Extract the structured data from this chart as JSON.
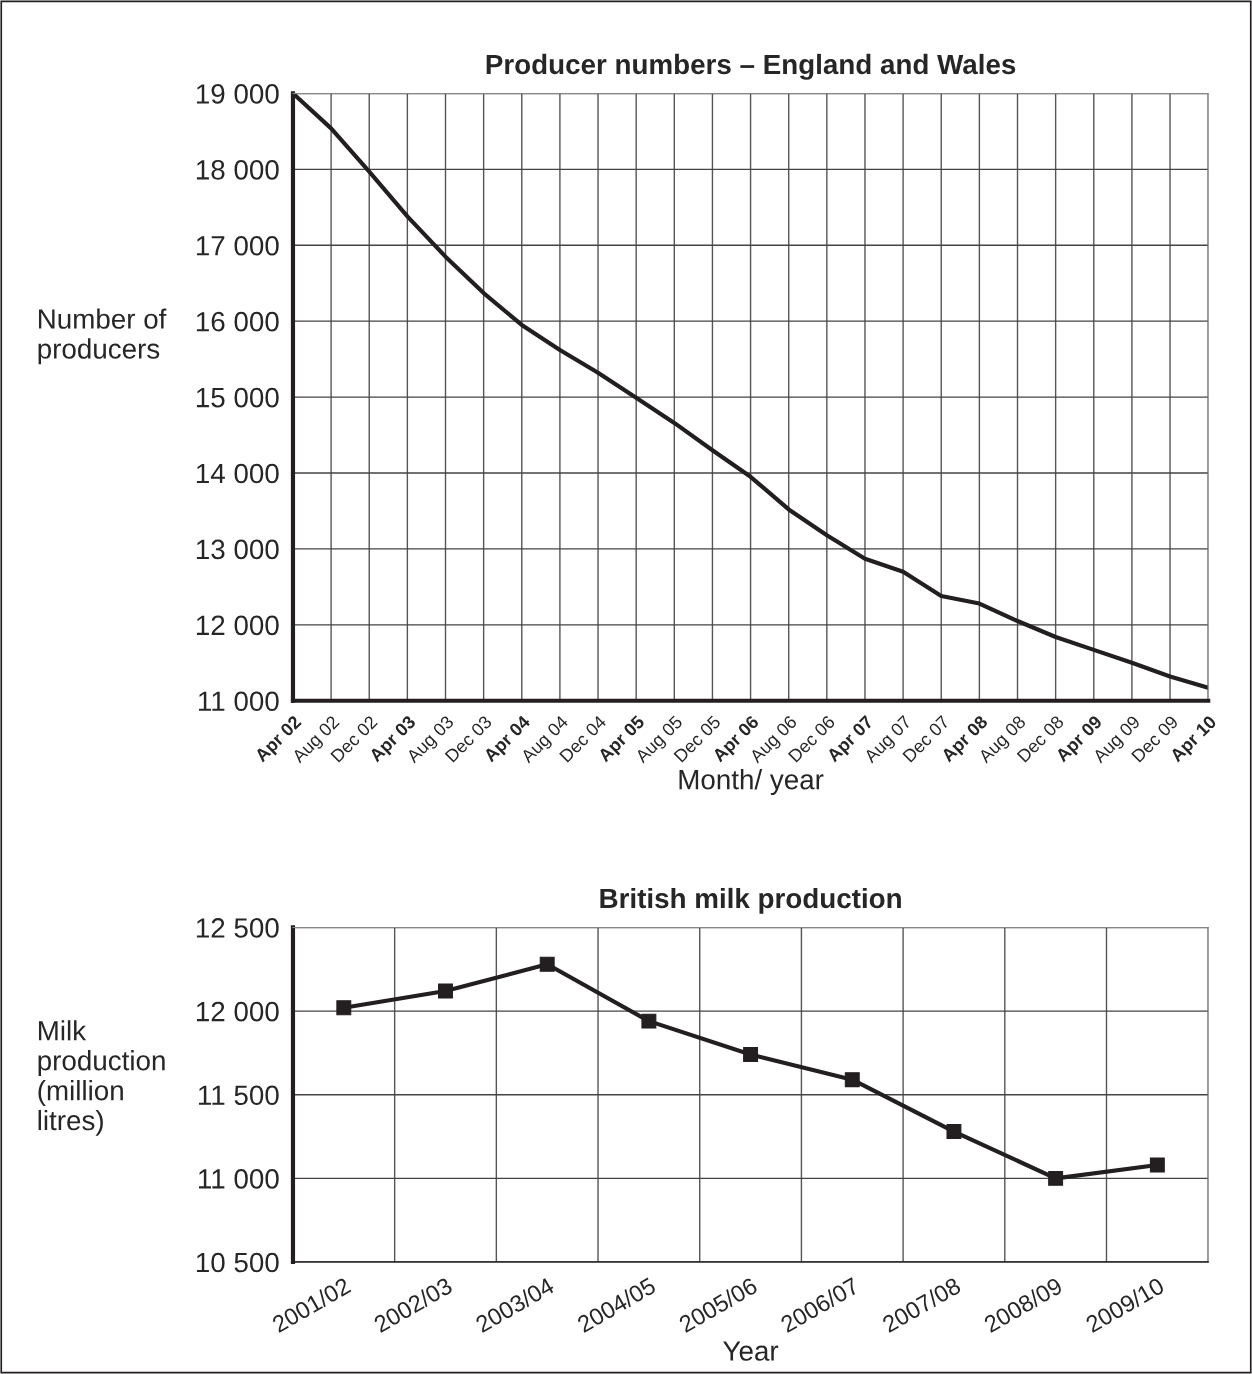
{
  "chart_data": [
    {
      "type": "line",
      "title": "Producer numbers – England and Wales",
      "xlabel": "Month/ year",
      "ylabel": "Number of\nproducers",
      "categories": [
        "Apr 02",
        "Aug 02",
        "Dec 02",
        "Apr 03",
        "Aug 03",
        "Dec 03",
        "Apr 04",
        "Aug 04",
        "Dec 04",
        "Apr 05",
        "Aug 05",
        "Dec 05",
        "Apr 06",
        "Aug 06",
        "Dec 06",
        "Apr 07",
        "Aug 07",
        "Dec 07",
        "Apr 08",
        "Aug 08",
        "Dec 08",
        "Apr 09",
        "Aug 09",
        "Dec 09",
        "Apr 10"
      ],
      "series": [
        {
          "color": "#231f20",
          "values": [
            19000,
            18540,
            17970,
            17380,
            16850,
            16370,
            15950,
            15620,
            15320,
            14990,
            14660,
            14300,
            13950,
            13520,
            13180,
            12870,
            12700,
            12380,
            12280,
            12050,
            11840,
            11670,
            11500,
            11320,
            11170
          ]
        }
      ],
      "ylim": [
        11000,
        19000
      ],
      "yticks": [
        {
          "value": 11000,
          "label": "11 000"
        },
        {
          "value": 12000,
          "label": "12 000"
        },
        {
          "value": 13000,
          "label": "13 000"
        },
        {
          "value": 14000,
          "label": "14 000"
        },
        {
          "value": 15000,
          "label": "15 000"
        },
        {
          "value": 16000,
          "label": "16 000"
        },
        {
          "value": 17000,
          "label": "17 000"
        },
        {
          "value": 18000,
          "label": "18 000"
        },
        {
          "value": 19000,
          "label": "19 000"
        }
      ],
      "grid": true,
      "marker": "none",
      "line_style": "solid",
      "legend": false
    },
    {
      "type": "line",
      "title": "British milk production",
      "xlabel": "Year",
      "ylabel": "Milk\nproduction\n(million\nlitres)",
      "categories": [
        "2001/02",
        "2002/03",
        "2003/04",
        "2004/05",
        "2005/06",
        "2006/07",
        "2007/08",
        "2008/09",
        "2009/10"
      ],
      "series": [
        {
          "color": "#231f20",
          "values": [
            12020,
            12120,
            12280,
            11940,
            11740,
            11590,
            11280,
            11000,
            11080
          ]
        }
      ],
      "ylim": [
        10500,
        12500
      ],
      "yticks": [
        {
          "value": 10500,
          "label": "10 500"
        },
        {
          "value": 11000,
          "label": "11 000"
        },
        {
          "value": 11500,
          "label": "11 500"
        },
        {
          "value": 12000,
          "label": "12 000"
        },
        {
          "value": 12500,
          "label": "12 500"
        }
      ],
      "grid": true,
      "marker": "square",
      "line_style": "solid",
      "legend": false
    }
  ]
}
